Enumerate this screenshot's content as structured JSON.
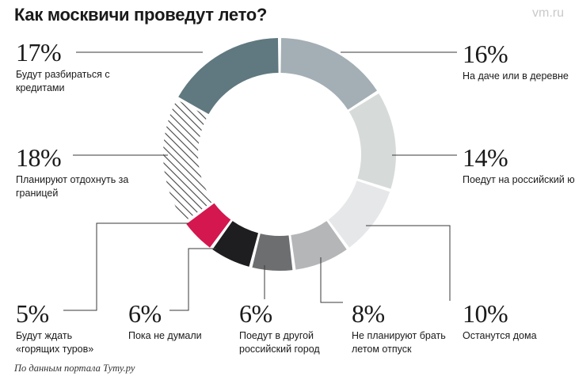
{
  "header": {
    "title": "Как москвичи проведут лето?",
    "watermark": "vm.ru"
  },
  "footnote": "По данным портала Туту.ру",
  "chart_data": {
    "type": "pie",
    "title": "Как москвичи проведут лето?",
    "slices": [
      {
        "value": 16,
        "label": "16%",
        "text": "На даче или в деревне",
        "color": "#a3afb4",
        "pattern": "solid"
      },
      {
        "value": 14,
        "label": "14%",
        "text": "Поедут на российский юг",
        "color": "#d6dad8",
        "pattern": "solid"
      },
      {
        "value": 10,
        "label": "10%",
        "text": "Останутся дома",
        "color": "#e6e7e9",
        "pattern": "solid"
      },
      {
        "value": 8,
        "label": "8%",
        "text": "Не планируют брать летом отпуск",
        "color": "#b5b6b8",
        "pattern": "solid"
      },
      {
        "value": 6,
        "label": "6%",
        "text": "Поедут в другой российский город",
        "color": "#6c6e70",
        "pattern": "solid"
      },
      {
        "value": 6,
        "label": "6%",
        "text": "Пока не думали",
        "color": "#1e1d1f",
        "pattern": "solid"
      },
      {
        "value": 5,
        "label": "5%",
        "text": "Будут ждать «горящих туров»",
        "color": "#d4174e",
        "pattern": "solid"
      },
      {
        "value": 18,
        "label": "18%",
        "text": "Планируют отдохнуть за границей",
        "color": "#444444",
        "pattern": "hatched"
      },
      {
        "value": 17,
        "label": "17%",
        "text": "Будут разбираться с кредитами",
        "color": "#607880",
        "pattern": "solid"
      }
    ]
  }
}
